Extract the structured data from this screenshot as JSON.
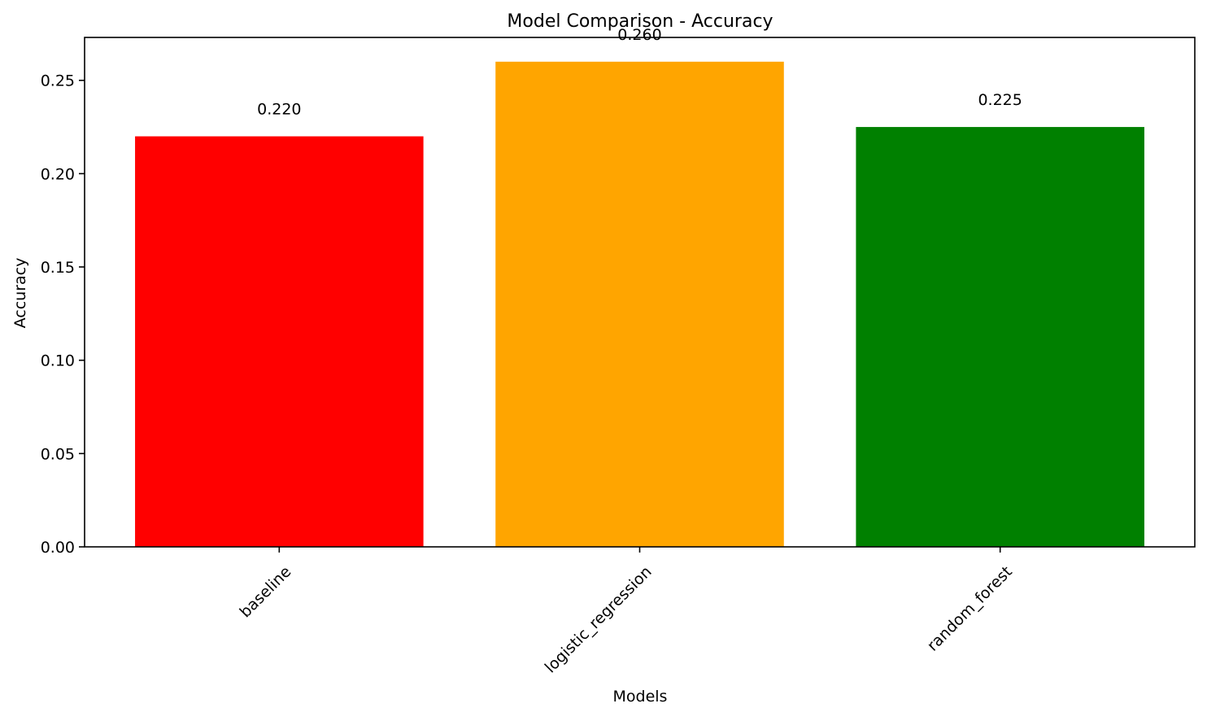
{
  "chart_data": {
    "type": "bar",
    "title": "Model Comparison - Accuracy",
    "xlabel": "Models",
    "ylabel": "Accuracy",
    "categories": [
      "baseline",
      "logistic_regression",
      "random_forest"
    ],
    "values": [
      0.22,
      0.26,
      0.225
    ],
    "value_labels": [
      "0.220",
      "0.260",
      "0.225"
    ],
    "bar_colors": [
      "#ff0000",
      "#ffa500",
      "#008000"
    ],
    "ylim": [
      0,
      0.273
    ],
    "yticks": [
      0,
      0.05,
      0.1,
      0.15,
      0.2,
      0.25
    ],
    "ytick_labels": [
      "0.00",
      "0.05",
      "0.10",
      "0.15",
      "0.20",
      "0.25"
    ],
    "grid": false,
    "legend": "none"
  }
}
